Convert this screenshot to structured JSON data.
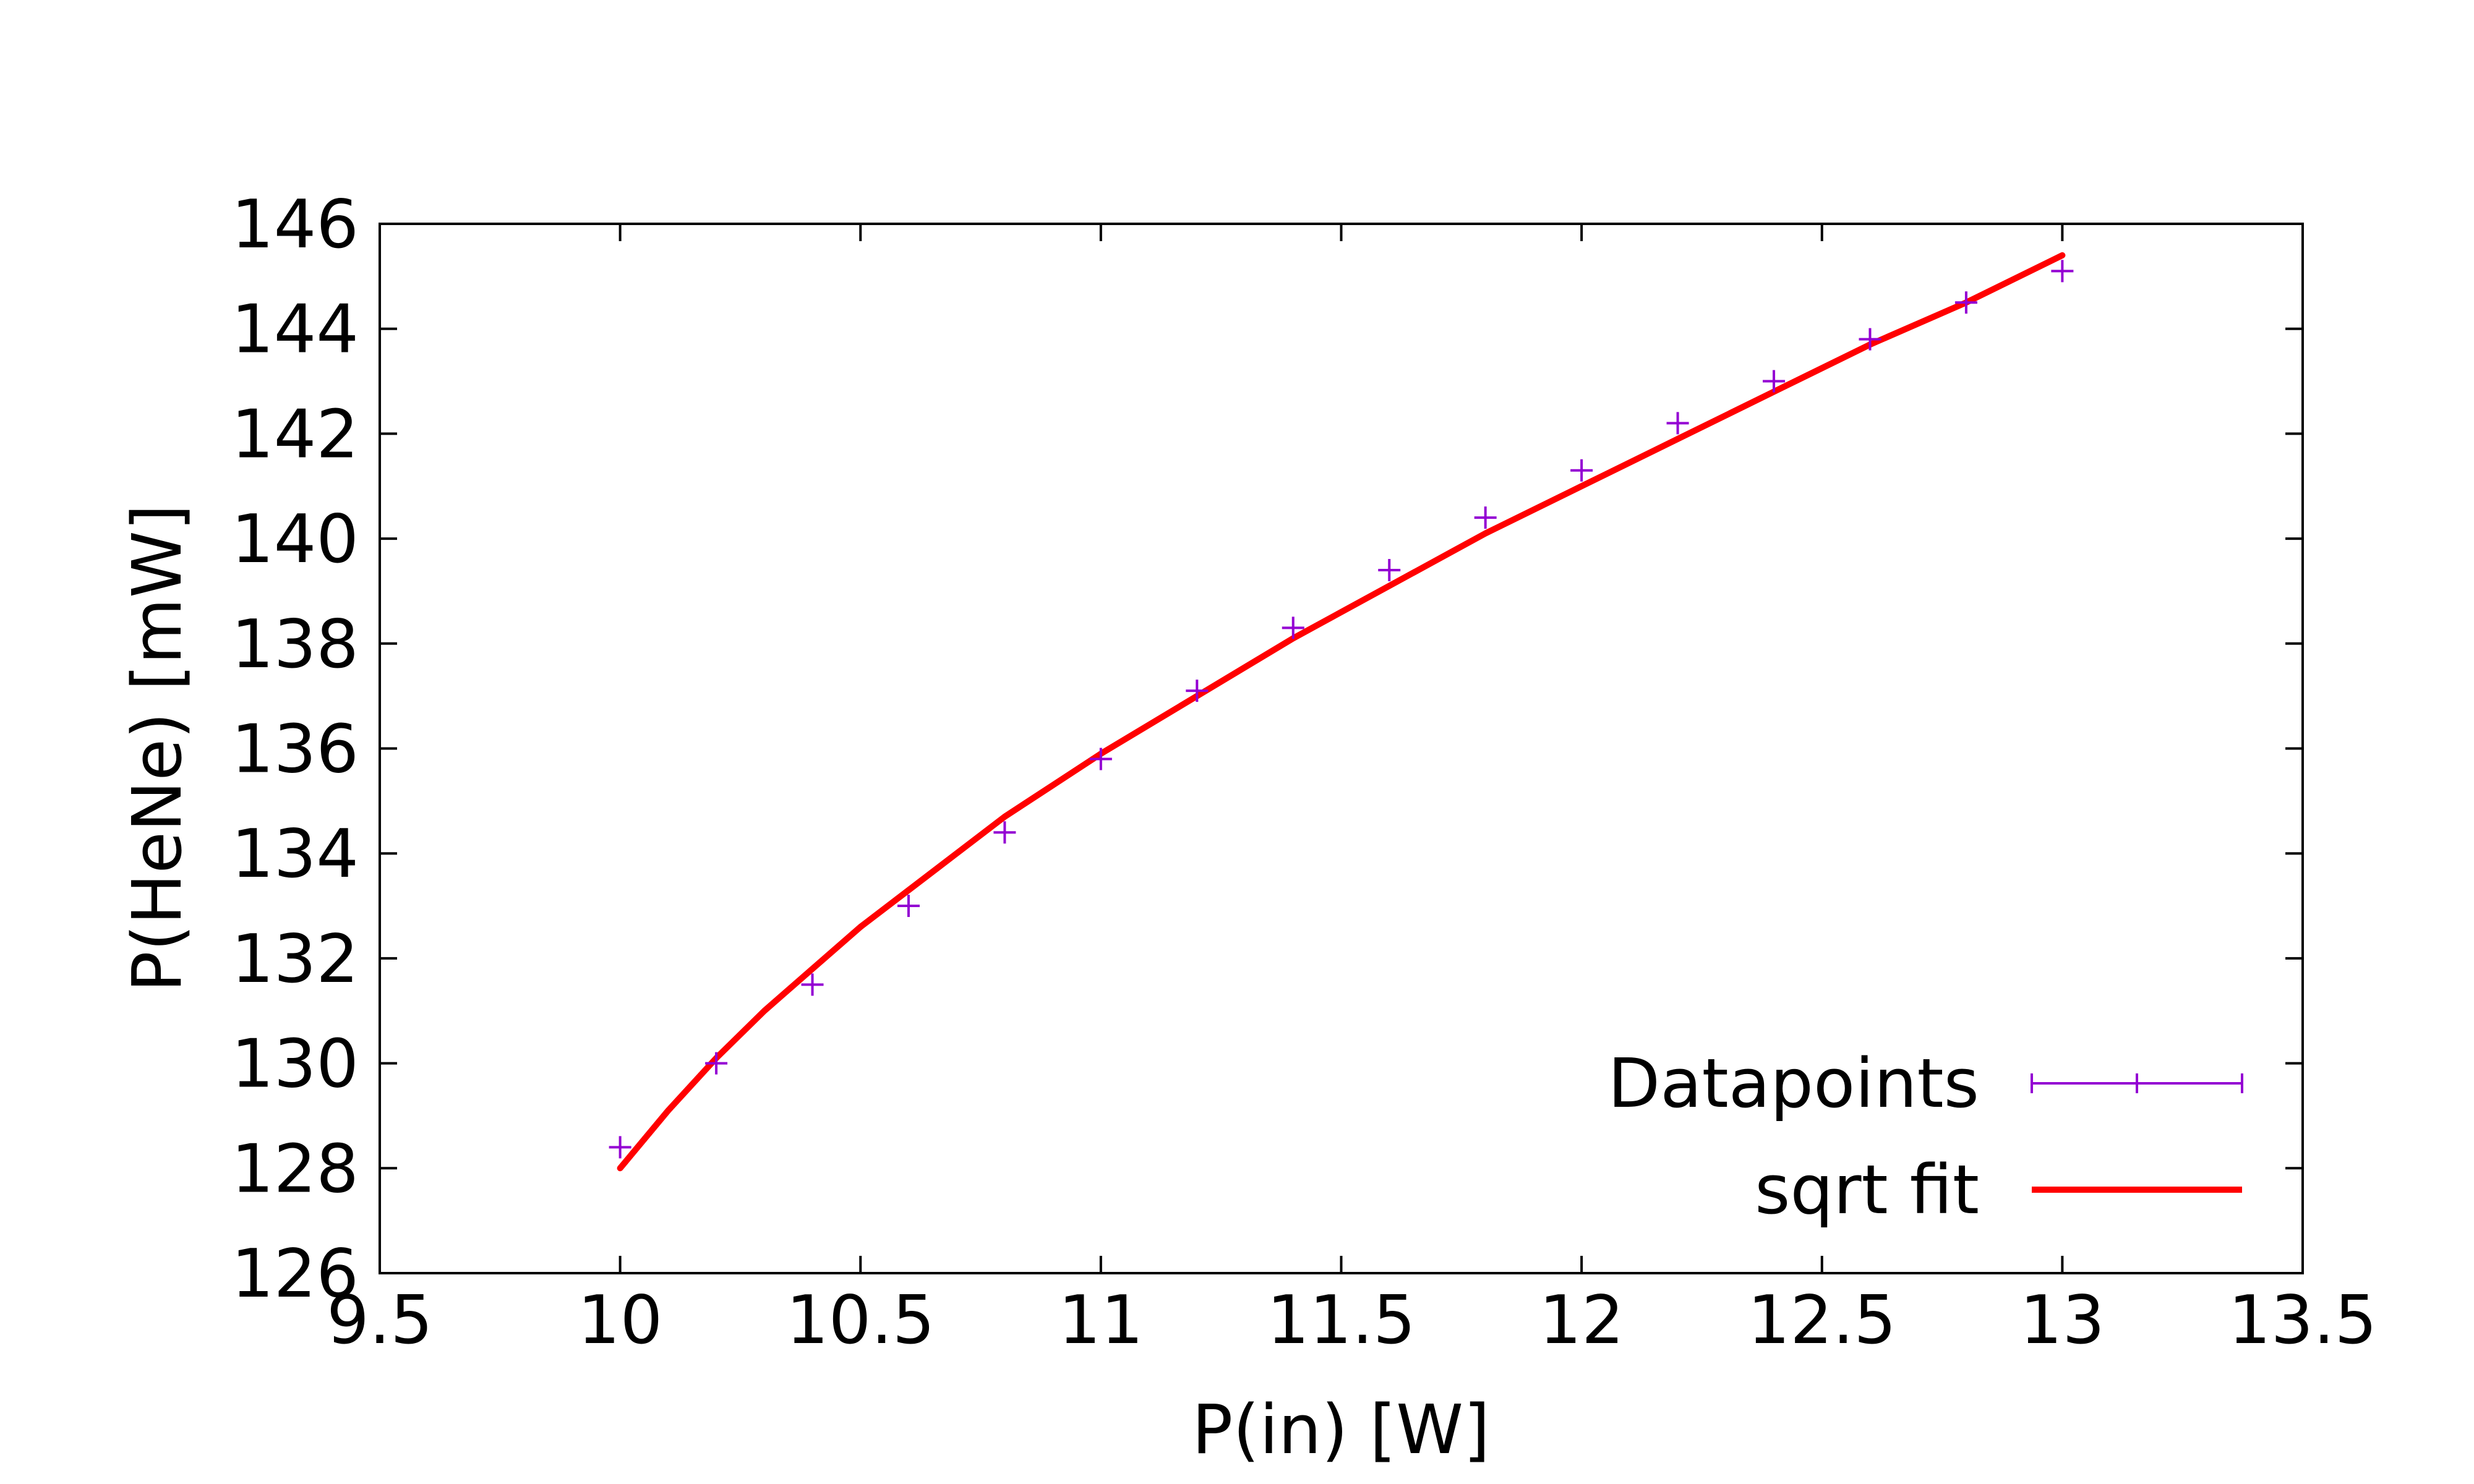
{
  "chart_data": {
    "type": "scatter",
    "xlabel": "P(in) [W]",
    "ylabel": "P(HeNe) [mW]",
    "xlim": [
      9.5,
      13.5
    ],
    "ylim": [
      126,
      146
    ],
    "xticks": [
      9.5,
      10,
      10.5,
      11,
      11.5,
      12,
      12.5,
      13,
      13.5
    ],
    "xtick_labels": [
      "9.5",
      "10",
      "10.5",
      "11",
      "11.5",
      "12",
      "12.5",
      "13",
      "13.5"
    ],
    "yticks": [
      126,
      128,
      130,
      132,
      134,
      136,
      138,
      140,
      142,
      144,
      146
    ],
    "ytick_labels": [
      "126",
      "128",
      "130",
      "132",
      "134",
      "136",
      "138",
      "140",
      "142",
      "144",
      "146"
    ],
    "grid": false,
    "legend_position": "bottom-right",
    "series": [
      {
        "name": "Datapoints",
        "kind": "points",
        "marker": "plus",
        "color": "#9400d3",
        "x": [
          10.0,
          10.2,
          10.4,
          10.6,
          10.8,
          11.0,
          11.2,
          11.4,
          11.6,
          11.8,
          12.0,
          12.2,
          12.4,
          12.6,
          12.8,
          13.0
        ],
        "y": [
          128.4,
          130.0,
          131.5,
          133.0,
          134.4,
          135.8,
          137.1,
          138.3,
          139.4,
          140.4,
          141.3,
          142.2,
          143.0,
          143.8,
          144.5,
          145.1
        ]
      },
      {
        "name": "sqrt fit",
        "kind": "line",
        "color": "#ff0000",
        "x": [
          10.0,
          10.1,
          10.2,
          10.3,
          10.4,
          10.5,
          10.6,
          10.7,
          10.8,
          10.9,
          11.0,
          11.2,
          11.4,
          11.6,
          11.8,
          12.0,
          12.2,
          12.4,
          12.6,
          12.8,
          13.0
        ],
        "y": [
          128.0,
          129.1,
          130.1,
          131.0,
          131.8,
          132.6,
          133.3,
          134.0,
          134.7,
          135.3,
          135.9,
          137.0,
          138.1,
          139.1,
          140.1,
          141.0,
          141.9,
          142.8,
          143.7,
          144.5,
          145.4
        ]
      }
    ]
  }
}
